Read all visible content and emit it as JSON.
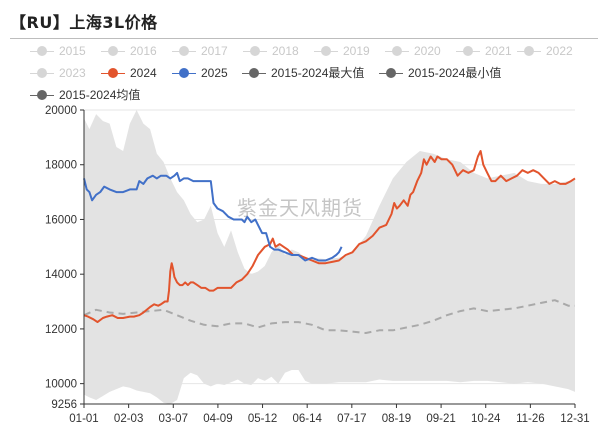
{
  "title": "【RU】上海3L价格",
  "watermark": "紫金天风期货",
  "legend": [
    {
      "label": "2015",
      "color": "#d6d6d6",
      "style": "inactive"
    },
    {
      "label": "2016",
      "color": "#d6d6d6",
      "style": "inactive"
    },
    {
      "label": "2017",
      "color": "#d6d6d6",
      "style": "inactive"
    },
    {
      "label": "2018",
      "color": "#d6d6d6",
      "style": "inactive"
    },
    {
      "label": "2019",
      "color": "#d6d6d6",
      "style": "inactive"
    },
    {
      "label": "2020",
      "color": "#d6d6d6",
      "style": "inactive"
    },
    {
      "label": "2021",
      "color": "#d6d6d6",
      "style": "inactive"
    },
    {
      "label": "2022",
      "color": "#d6d6d6",
      "style": "inactive"
    },
    {
      "label": "2023",
      "color": "#d6d6d6",
      "style": "inactive"
    },
    {
      "label": "2024",
      "color": "#e2542d",
      "style": "active"
    },
    {
      "label": "2025",
      "color": "#4170c8",
      "style": "active"
    },
    {
      "label": "2015-2024最大值",
      "color": "#666666",
      "style": "active"
    },
    {
      "label": "2015-2024最小值",
      "color": "#666666",
      "style": "active"
    },
    {
      "label": "2015-2024均值",
      "color": "#666666",
      "style": "active"
    }
  ],
  "chart_data": {
    "type": "line",
    "title": "【RU】上海3L价格",
    "x_ticks": [
      "01-01",
      "02-03",
      "03-07",
      "04-09",
      "05-12",
      "06-14",
      "07-17",
      "08-19",
      "09-21",
      "10-24",
      "11-26",
      "12-31"
    ],
    "y_ticks": [
      9256,
      10000,
      12000,
      14000,
      16000,
      18000,
      20000
    ],
    "ylim": [
      9256,
      20000
    ],
    "grid": true,
    "legend_position": "top",
    "colors": {
      "s2024": "#e2542d",
      "s2025": "#4170c8",
      "band": "#e3e3e3",
      "mean": "#a9a9a9"
    },
    "band": {
      "name_max": "2015-2024最大值",
      "name_min": "2015-2024最小值",
      "days": [
        1,
        5,
        10,
        15,
        20,
        25,
        30,
        35,
        40,
        45,
        50,
        55,
        60,
        65,
        70,
        75,
        80,
        85,
        90,
        95,
        100,
        105,
        110,
        115,
        120,
        125,
        130,
        135,
        140,
        145,
        150,
        155,
        160,
        165,
        170,
        180,
        190,
        200,
        210,
        220,
        230,
        240,
        250,
        260,
        270,
        280,
        290,
        300,
        310,
        320,
        330,
        340,
        350,
        360,
        365
      ],
      "max": [
        19700,
        19300,
        19850,
        19600,
        19500,
        18650,
        18500,
        19500,
        20000,
        19500,
        19300,
        18400,
        18100,
        17500,
        17000,
        16700,
        16200,
        15900,
        16000,
        16500,
        15500,
        15000,
        15600,
        14800,
        14200,
        14000,
        14100,
        14300,
        14800,
        15100,
        14700,
        14900,
        14800,
        14600,
        14600,
        14550,
        14600,
        14800,
        15400,
        16500,
        17500,
        18100,
        18500,
        18400,
        18200,
        18100,
        17700,
        17500,
        17600,
        17700,
        17400,
        17300,
        17300,
        17400,
        17500
      ],
      "min": [
        9600,
        9500,
        9400,
        9550,
        9700,
        9800,
        9900,
        9850,
        9750,
        9700,
        9650,
        9500,
        9300,
        9256,
        9400,
        10200,
        10400,
        10300,
        10000,
        9900,
        10000,
        9950,
        10050,
        10150,
        10000,
        9950,
        10200,
        10100,
        10250,
        10000,
        10400,
        10500,
        10500,
        10100,
        10000,
        10000,
        10050,
        10050,
        10050,
        10150,
        10100,
        10100,
        10100,
        10100,
        10100,
        10050,
        10100,
        10100,
        10050,
        10000,
        10050,
        10000,
        9900,
        9800,
        9700
      ]
    },
    "series": [
      {
        "name": "2015-2024均值",
        "dashed": true,
        "days": [
          1,
          10,
          20,
          30,
          40,
          50,
          60,
          70,
          80,
          90,
          100,
          110,
          120,
          130,
          140,
          150,
          160,
          170,
          180,
          190,
          200,
          210,
          220,
          230,
          240,
          250,
          260,
          270,
          280,
          290,
          300,
          310,
          320,
          330,
          340,
          350,
          360,
          365
        ],
        "values": [
          12500,
          12700,
          12600,
          12550,
          12600,
          12650,
          12700,
          12500,
          12300,
          12150,
          12100,
          12200,
          12200,
          12050,
          12200,
          12250,
          12250,
          12150,
          11950,
          11950,
          11900,
          11850,
          11950,
          11950,
          12050,
          12150,
          12300,
          12500,
          12650,
          12750,
          12650,
          12700,
          12750,
          12850,
          12950,
          13050,
          12850,
          12850
        ]
      },
      {
        "name": "2024",
        "days": [
          1,
          4,
          8,
          11,
          15,
          18,
          22,
          26,
          30,
          35,
          38,
          42,
          45,
          50,
          53,
          56,
          58,
          61,
          63,
          64,
          65,
          66,
          67,
          68,
          70,
          72,
          74,
          76,
          78,
          80,
          82,
          85,
          88,
          91,
          94,
          97,
          100,
          103,
          106,
          110,
          114,
          118,
          122,
          126,
          130,
          135,
          139,
          141,
          143,
          146,
          149,
          152,
          156,
          160,
          165,
          170,
          175,
          180,
          185,
          190,
          195,
          200,
          205,
          210,
          215,
          220,
          225,
          229,
          231,
          233,
          235,
          238,
          241,
          243,
          245,
          248,
          251,
          253,
          255,
          258,
          261,
          263,
          266,
          270,
          274,
          278,
          282,
          286,
          290,
          293,
          295,
          297,
          300,
          303,
          306,
          310,
          314,
          318,
          322,
          326,
          330,
          334,
          338,
          342,
          346,
          350,
          354,
          358,
          362,
          365
        ],
        "values": [
          12500,
          12450,
          12350,
          12250,
          12400,
          12450,
          12500,
          12400,
          12400,
          12450,
          12450,
          12500,
          12600,
          12800,
          12900,
          12850,
          12900,
          13000,
          13000,
          13400,
          14100,
          14400,
          14200,
          13900,
          13700,
          13600,
          13600,
          13700,
          13600,
          13700,
          13700,
          13600,
          13500,
          13500,
          13400,
          13400,
          13500,
          13500,
          13500,
          13500,
          13700,
          13800,
          14000,
          14300,
          14700,
          15000,
          15100,
          15300,
          15000,
          15100,
          15000,
          14900,
          14700,
          14700,
          14600,
          14500,
          14400,
          14400,
          14450,
          14500,
          14700,
          14800,
          15100,
          15200,
          15400,
          15700,
          15800,
          16200,
          16600,
          16400,
          16500,
          16700,
          16500,
          16900,
          17000,
          17400,
          17700,
          18200,
          18000,
          18300,
          18100,
          18300,
          18200,
          18200,
          18000,
          17600,
          17800,
          17700,
          17800,
          18300,
          18500,
          18000,
          17700,
          17400,
          17400,
          17600,
          17400,
          17500,
          17600,
          17800,
          17700,
          17800,
          17700,
          17500,
          17300,
          17400,
          17300,
          17300,
          17400,
          17500
        ]
      },
      {
        "name": "2025",
        "days": [
          1,
          3,
          5,
          7,
          10,
          13,
          16,
          20,
          25,
          30,
          35,
          40,
          42,
          45,
          48,
          52,
          55,
          58,
          62,
          65,
          68,
          70,
          72,
          75,
          78,
          82,
          86,
          90,
          93,
          95,
          97,
          100,
          104,
          108,
          112,
          116,
          118,
          120,
          122,
          125,
          128,
          130,
          133,
          136,
          139,
          142,
          145,
          150,
          155,
          160,
          165,
          170,
          175,
          180,
          185,
          188,
          190,
          192
        ],
        "values": [
          17500,
          17100,
          17000,
          16700,
          16900,
          17000,
          17200,
          17100,
          17000,
          17000,
          17100,
          17100,
          17400,
          17300,
          17500,
          17600,
          17500,
          17600,
          17600,
          17500,
          17600,
          17700,
          17400,
          17500,
          17500,
          17400,
          17400,
          17400,
          17400,
          17400,
          16600,
          16400,
          16300,
          16100,
          16000,
          16000,
          16000,
          15900,
          16100,
          15900,
          16000,
          15800,
          15500,
          15500,
          15000,
          14900,
          14900,
          14800,
          14700,
          14700,
          14500,
          14600,
          14500,
          14500,
          14600,
          14700,
          14800,
          15000
        ]
      }
    ]
  }
}
